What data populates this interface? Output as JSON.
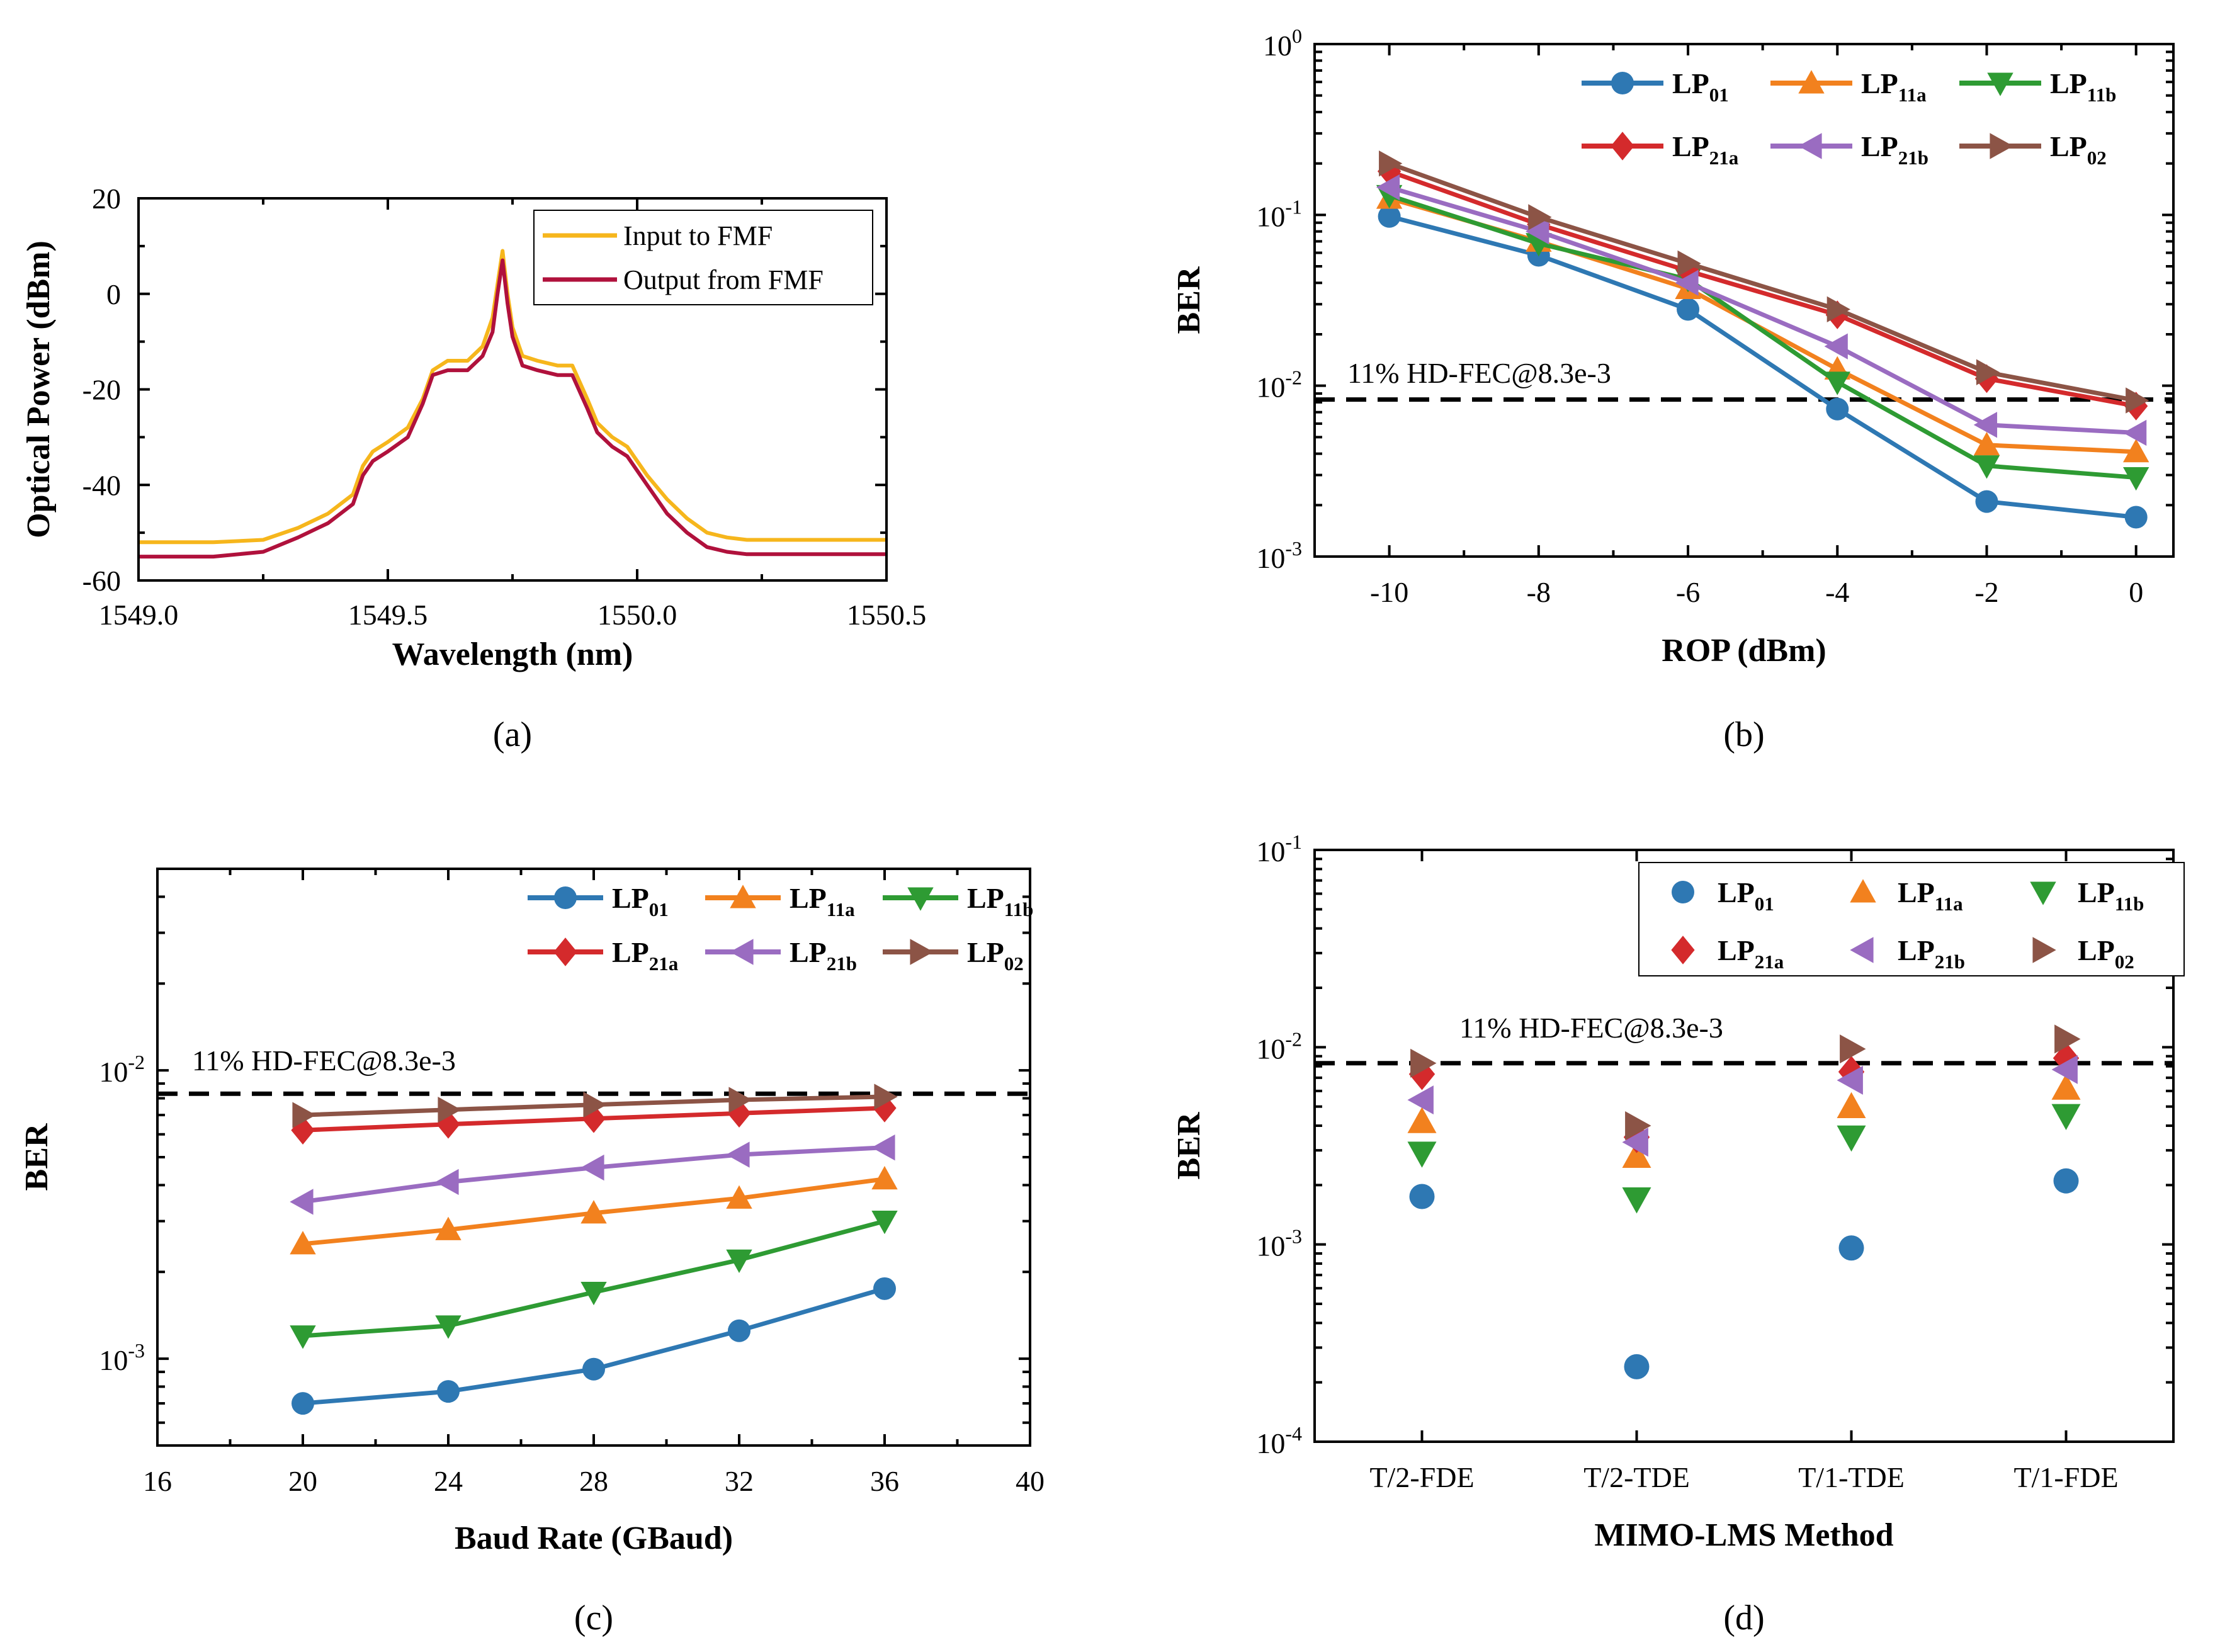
{
  "colors": {
    "LP01": "#2e78b3",
    "LP11a": "#f2811e",
    "LP11b": "#2e9b33",
    "LP21a": "#d42a2c",
    "LP21b": "#9a6cc1",
    "LP02": "#8c5446",
    "input": "#f6b61c",
    "output": "#b0113c"
  },
  "chart_data": [
    {
      "id": "a",
      "type": "line",
      "caption": "(a)",
      "title": "",
      "xlabel": "Wavelength (nm)",
      "ylabel": "Optical Power (dBm)",
      "xlim": [
        1549.0,
        1550.5
      ],
      "ylim": [
        -60,
        20
      ],
      "xticks": [
        "1549.0",
        "1549.5",
        "1550.0",
        "1550.5"
      ],
      "yticks": [
        "-60",
        "-40",
        "-20",
        "0",
        "20"
      ],
      "series": [
        {
          "name": "Input to FMF",
          "x": [
            1549.0,
            1549.15,
            1549.25,
            1549.32,
            1549.38,
            1549.43,
            1549.45,
            1549.47,
            1549.5,
            1549.54,
            1549.57,
            1549.59,
            1549.62,
            1549.66,
            1549.69,
            1549.71,
            1549.72,
            1549.73,
            1549.74,
            1549.75,
            1549.77,
            1549.8,
            1549.84,
            1549.87,
            1549.9,
            1549.92,
            1549.95,
            1549.98,
            1550.02,
            1550.06,
            1550.1,
            1550.14,
            1550.18,
            1550.22,
            1550.3,
            1550.5
          ],
          "y": [
            -52,
            -52,
            -51.5,
            -49,
            -46,
            -42,
            -36,
            -33,
            -31,
            -28,
            -22,
            -16,
            -14,
            -14,
            -11,
            -5,
            2,
            9,
            0,
            -7,
            -13,
            -14,
            -15,
            -15,
            -22,
            -27,
            -30,
            -32,
            -38,
            -43,
            -47,
            -50,
            -51,
            -51.5,
            -51.5,
            -51.5
          ]
        },
        {
          "name": "Output from FMF",
          "x": [
            1549.0,
            1549.15,
            1549.25,
            1549.32,
            1549.38,
            1549.43,
            1549.45,
            1549.47,
            1549.5,
            1549.54,
            1549.57,
            1549.59,
            1549.62,
            1549.66,
            1549.69,
            1549.71,
            1549.72,
            1549.73,
            1549.74,
            1549.75,
            1549.77,
            1549.8,
            1549.84,
            1549.87,
            1549.9,
            1549.92,
            1549.95,
            1549.98,
            1550.02,
            1550.06,
            1550.1,
            1550.14,
            1550.18,
            1550.22,
            1550.3,
            1550.5
          ],
          "y": [
            -55,
            -55,
            -54,
            -51,
            -48,
            -44,
            -38,
            -35,
            -33,
            -30,
            -23,
            -17,
            -16,
            -16,
            -13,
            -8,
            0,
            7,
            -2,
            -9,
            -15,
            -16,
            -17,
            -17,
            -24,
            -29,
            -32,
            -34,
            -40,
            -46,
            -50,
            -53,
            -54,
            -54.5,
            -54.5,
            -54.5
          ]
        }
      ],
      "legend": [
        "Input to FMF",
        "Output from FMF"
      ]
    },
    {
      "id": "b",
      "type": "line",
      "caption": "(b)",
      "xlabel": "ROP (dBm)",
      "ylabel": "BER",
      "yscale": "log",
      "xlim": [
        -11,
        0.5
      ],
      "ylim": [
        0.001,
        1
      ],
      "xticks": [
        -10,
        -8,
        -6,
        -4,
        -2,
        0
      ],
      "yticks": [
        {
          "base": "10",
          "exp": "-3"
        },
        {
          "base": "10",
          "exp": "-2"
        },
        {
          "base": "10",
          "exp": "-1"
        },
        {
          "base": "10",
          "exp": "0"
        }
      ],
      "threshold": {
        "value": 0.0083,
        "label": "11% HD-FEC@8.3e-3"
      },
      "x": [
        -10,
        -8,
        -6,
        -4,
        -2,
        0
      ],
      "series": [
        {
          "key": "LP01",
          "main": "LP",
          "sub": "01",
          "marker": "circle",
          "values": [
            0.098,
            0.058,
            0.028,
            0.0073,
            0.0021,
            0.0017
          ]
        },
        {
          "key": "LP11a",
          "main": "LP",
          "sub": "11a",
          "marker": "tri-up",
          "values": [
            0.125,
            0.07,
            0.037,
            0.0125,
            0.0045,
            0.0041
          ]
        },
        {
          "key": "LP11b",
          "main": "LP",
          "sub": "11b",
          "marker": "tri-down",
          "values": [
            0.13,
            0.068,
            0.042,
            0.0105,
            0.0034,
            0.0029
          ]
        },
        {
          "key": "LP21a",
          "main": "LP",
          "sub": "21a",
          "marker": "diamond",
          "values": [
            0.18,
            0.088,
            0.047,
            0.026,
            0.011,
            0.0076
          ]
        },
        {
          "key": "LP21b",
          "main": "LP",
          "sub": "21b",
          "marker": "tri-left",
          "values": [
            0.145,
            0.08,
            0.04,
            0.017,
            0.0059,
            0.0053
          ]
        },
        {
          "key": "LP02",
          "main": "LP",
          "sub": "02",
          "marker": "tri-right",
          "values": [
            0.2,
            0.097,
            0.052,
            0.028,
            0.012,
            0.0082
          ]
        }
      ]
    },
    {
      "id": "c",
      "type": "line",
      "caption": "(c)",
      "xlabel": "Baud Rate (GBaud)",
      "ylabel": "BER",
      "yscale": "log",
      "xlim": [
        16,
        40
      ],
      "ylim": [
        0.0005,
        0.05
      ],
      "xticks": [
        16,
        20,
        24,
        28,
        32,
        36,
        40
      ],
      "yticks": [
        {
          "base": "10",
          "exp": "-3"
        },
        {
          "base": "10",
          "exp": "-2"
        }
      ],
      "threshold": {
        "value": 0.0083,
        "label": "11% HD-FEC@8.3e-3"
      },
      "x": [
        20,
        24,
        28,
        32,
        36
      ],
      "series": [
        {
          "key": "LP01",
          "main": "LP",
          "sub": "01",
          "marker": "circle",
          "values": [
            0.0007,
            0.00077,
            0.00092,
            0.00125,
            0.00175
          ]
        },
        {
          "key": "LP11a",
          "main": "LP",
          "sub": "11a",
          "marker": "tri-up",
          "values": [
            0.0025,
            0.0028,
            0.0032,
            0.0036,
            0.0042
          ]
        },
        {
          "key": "LP11b",
          "main": "LP",
          "sub": "11b",
          "marker": "tri-down",
          "values": [
            0.0012,
            0.0013,
            0.0017,
            0.0022,
            0.003
          ]
        },
        {
          "key": "LP21a",
          "main": "LP",
          "sub": "21a",
          "marker": "diamond",
          "values": [
            0.0062,
            0.0065,
            0.0068,
            0.0071,
            0.0074
          ]
        },
        {
          "key": "LP21b",
          "main": "LP",
          "sub": "21b",
          "marker": "tri-left",
          "values": [
            0.0035,
            0.0041,
            0.0046,
            0.0051,
            0.0054
          ]
        },
        {
          "key": "LP02",
          "main": "LP",
          "sub": "02",
          "marker": "tri-right",
          "values": [
            0.007,
            0.0073,
            0.0076,
            0.0079,
            0.0081
          ]
        }
      ]
    },
    {
      "id": "d",
      "type": "scatter",
      "caption": "(d)",
      "xlabel": "MIMO-LMS Method",
      "ylabel": "BER",
      "yscale": "log",
      "ylim": [
        0.0001,
        0.1
      ],
      "categories": [
        "T/2-FDE",
        "T/2-TDE",
        "T/1-TDE",
        "T/1-FDE"
      ],
      "yticks": [
        {
          "base": "10",
          "exp": "-4"
        },
        {
          "base": "10",
          "exp": "-3"
        },
        {
          "base": "10",
          "exp": "-2"
        },
        {
          "base": "10",
          "exp": "-1"
        }
      ],
      "threshold": {
        "value": 0.0083,
        "label": "11% HD-FEC@8.3e-3"
      },
      "series": [
        {
          "key": "LP01",
          "main": "LP",
          "sub": "01",
          "marker": "circle",
          "values": [
            0.00175,
            0.00024,
            0.00096,
            0.0021
          ]
        },
        {
          "key": "LP11a",
          "main": "LP",
          "sub": "11a",
          "marker": "tri-up",
          "values": [
            0.0042,
            0.0028,
            0.005,
            0.0062
          ]
        },
        {
          "key": "LP11b",
          "main": "LP",
          "sub": "11b",
          "marker": "tri-down",
          "values": [
            0.0029,
            0.0017,
            0.0035,
            0.0045
          ]
        },
        {
          "key": "LP21a",
          "main": "LP",
          "sub": "21a",
          "marker": "diamond",
          "values": [
            0.0073,
            0.0035,
            0.0075,
            0.0088
          ]
        },
        {
          "key": "LP21b",
          "main": "LP",
          "sub": "21b",
          "marker": "tri-left",
          "values": [
            0.0054,
            0.0033,
            0.0068,
            0.0077
          ]
        },
        {
          "key": "LP02",
          "main": "LP",
          "sub": "02",
          "marker": "tri-right",
          "values": [
            0.0083,
            0.004,
            0.0098,
            0.011
          ]
        }
      ]
    }
  ]
}
